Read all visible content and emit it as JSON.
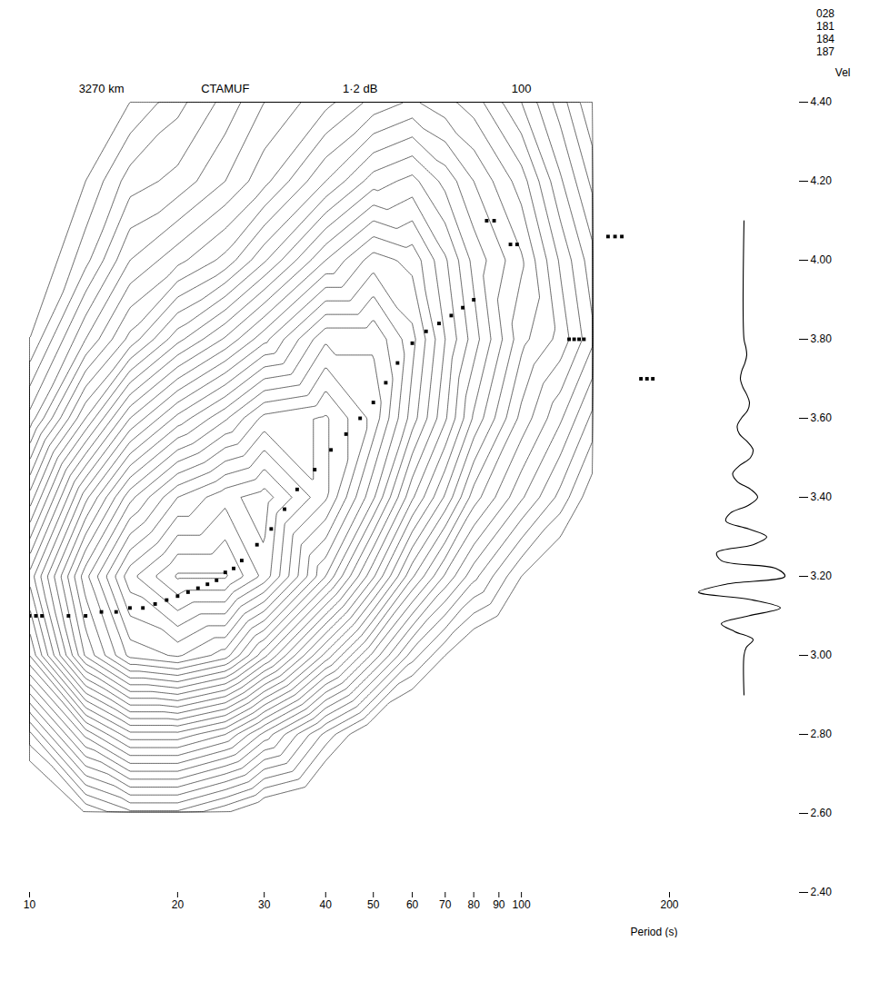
{
  "chart_data": {
    "type": "contour",
    "annotations": [
      {
        "text": "3270 km",
        "x": 14
      },
      {
        "text": "CTAMUF",
        "x": 25
      },
      {
        "text": "1·2 dB",
        "x": 47
      },
      {
        "text": "100",
        "x": 100
      }
    ],
    "codes": [
      "028",
      "181",
      "184",
      "187"
    ],
    "xlabel": "Period (s)",
    "ylabel": "Vel",
    "log": "x",
    "grid": false,
    "xlim": [
      10,
      200
    ],
    "xticks": [
      10,
      20,
      30,
      40,
      50,
      60,
      70,
      80,
      90,
      100,
      200
    ],
    "ylim": [
      2.4,
      4.4
    ],
    "yticks": [
      {
        "value": 4.4,
        "label": "4.40"
      },
      {
        "value": 4.2,
        "label": "4.20"
      },
      {
        "value": 4.0,
        "label": "4.00"
      },
      {
        "value": 3.8,
        "label": "3.80"
      },
      {
        "value": 3.6,
        "label": "3.60"
      },
      {
        "value": 3.4,
        "label": "3.40"
      },
      {
        "value": 3.2,
        "label": "3.20"
      },
      {
        "value": 3.0,
        "label": "3.00"
      },
      {
        "value": 2.8,
        "label": "2.80"
      },
      {
        "value": 2.6,
        "label": "2.60"
      },
      {
        "value": 2.4,
        "label": "2.40"
      }
    ],
    "periods": [
      10,
      13,
      16,
      20,
      25,
      30,
      40,
      50,
      60,
      70,
      80,
      100,
      120,
      140
    ],
    "velocities": [
      2.6,
      2.8,
      3.0,
      3.2,
      3.4,
      3.6,
      3.8,
      4.0,
      4.2,
      4.4
    ],
    "amplitude_db": [
      [
        -40,
        -34,
        -24,
        -20,
        -26,
        -32,
        -36,
        -38,
        -40,
        -40
      ],
      [
        -36,
        -26,
        -13,
        -10,
        -16,
        -24,
        -30,
        -34,
        -36,
        -38
      ],
      [
        -34,
        -22,
        -8,
        -4,
        -10,
        -18,
        -26,
        -30,
        -33,
        -36
      ],
      [
        -34,
        -22,
        -7,
        -1,
        -6,
        -14,
        -22,
        -28,
        -32,
        -34
      ],
      [
        -36,
        -24,
        -9,
        -1,
        -4,
        -11,
        -19,
        -26,
        -30,
        -32
      ],
      [
        -38,
        -28,
        -14,
        -4,
        -3,
        -8,
        -16,
        -23,
        -28,
        -30
      ],
      [
        -40,
        -34,
        -22,
        -12,
        -7,
        -7,
        -11,
        -18,
        -24,
        -28
      ],
      [
        -40,
        -38,
        -28,
        -19,
        -13,
        -10,
        -11,
        -15,
        -21,
        -26
      ],
      [
        -40,
        -40,
        -33,
        -25,
        -19,
        -15,
        -14,
        -16,
        -20,
        -25
      ],
      [
        -40,
        -40,
        -36,
        -29,
        -23,
        -19,
        -18,
        -19,
        -22,
        -26
      ],
      [
        -40,
        -40,
        -38,
        -32,
        -27,
        -23,
        -21,
        -22,
        -24,
        -27
      ],
      [
        -40,
        -40,
        -40,
        -36,
        -31,
        -28,
        -26,
        -25,
        -27,
        -30
      ],
      [
        -40,
        -40,
        -40,
        -38,
        -34,
        -31,
        -28,
        -29,
        -31,
        -33
      ],
      [
        -40,
        -40,
        -40,
        -40,
        -37,
        -34,
        -31,
        -32,
        -34,
        -36
      ]
    ],
    "contour_levels": [
      -36,
      -34.8,
      -33.6,
      -32.4,
      -31.2,
      -30,
      -28.8,
      -27.6,
      -26.4,
      -25.2,
      -24,
      -22.8,
      -21.6,
      -20.4,
      -19.2,
      -18,
      -16.8,
      -15.6,
      -14.4,
      -13.2,
      -12,
      -10.8,
      -9.6,
      -8.4,
      -7.2,
      -6,
      -4.8,
      -3.6,
      -2.4,
      -1.2
    ],
    "ridge": {
      "type": "scatter",
      "marker": "square",
      "color": "#000000",
      "x": [
        10,
        10.3,
        10.6,
        12,
        13,
        14,
        15,
        16,
        17,
        18,
        19,
        20,
        21,
        22,
        23,
        24,
        25,
        26,
        27,
        29,
        31,
        33,
        35,
        38,
        41,
        44,
        47,
        50,
        53,
        56,
        60,
        64,
        68,
        72,
        76,
        80,
        85,
        88,
        95,
        98,
        125,
        128,
        131,
        134,
        150,
        155,
        160,
        175,
        180,
        185
      ],
      "values": [
        3.1,
        3.1,
        3.1,
        3.1,
        3.1,
        3.11,
        3.11,
        3.12,
        3.12,
        3.13,
        3.14,
        3.15,
        3.16,
        3.17,
        3.18,
        3.19,
        3.21,
        3.22,
        3.24,
        3.28,
        3.32,
        3.37,
        3.42,
        3.47,
        3.52,
        3.56,
        3.6,
        3.64,
        3.69,
        3.74,
        3.79,
        3.82,
        3.84,
        3.86,
        3.88,
        3.9,
        4.1,
        4.1,
        4.04,
        4.04,
        3.8,
        3.8,
        3.8,
        3.8,
        4.06,
        4.06,
        4.06,
        3.7,
        3.7,
        3.7
      ]
    },
    "seismogram": {
      "type": "line",
      "color": "#000000",
      "xlim": [
        -1.2,
        1.2
      ],
      "velocity": [
        4.1,
        3.8,
        3.78,
        3.76,
        3.74,
        3.72,
        3.7,
        3.68,
        3.66,
        3.64,
        3.62,
        3.6,
        3.58,
        3.56,
        3.54,
        3.52,
        3.5,
        3.48,
        3.46,
        3.44,
        3.42,
        3.4,
        3.38,
        3.36,
        3.34,
        3.32,
        3.3,
        3.28,
        3.26,
        3.24,
        3.22,
        3.2,
        3.18,
        3.16,
        3.14,
        3.12,
        3.1,
        3.08,
        3.06,
        3.04,
        3.02,
        3.0,
        2.9
      ],
      "values": [
        0,
        0,
        0.04,
        0.06,
        0.02,
        -0.05,
        -0.08,
        -0.03,
        0.06,
        0.12,
        0.08,
        -0.06,
        -0.15,
        -0.1,
        0.08,
        0.2,
        0.14,
        -0.1,
        -0.25,
        -0.15,
        0.15,
        0.3,
        0.1,
        -0.3,
        -0.4,
        0.1,
        0.5,
        0.2,
        -0.6,
        -0.5,
        0.7,
        0.9,
        -0.4,
        -1,
        0.2,
        0.8,
        0.1,
        -0.5,
        -0.2,
        0.2,
        0.05,
        0,
        0
      ]
    }
  }
}
